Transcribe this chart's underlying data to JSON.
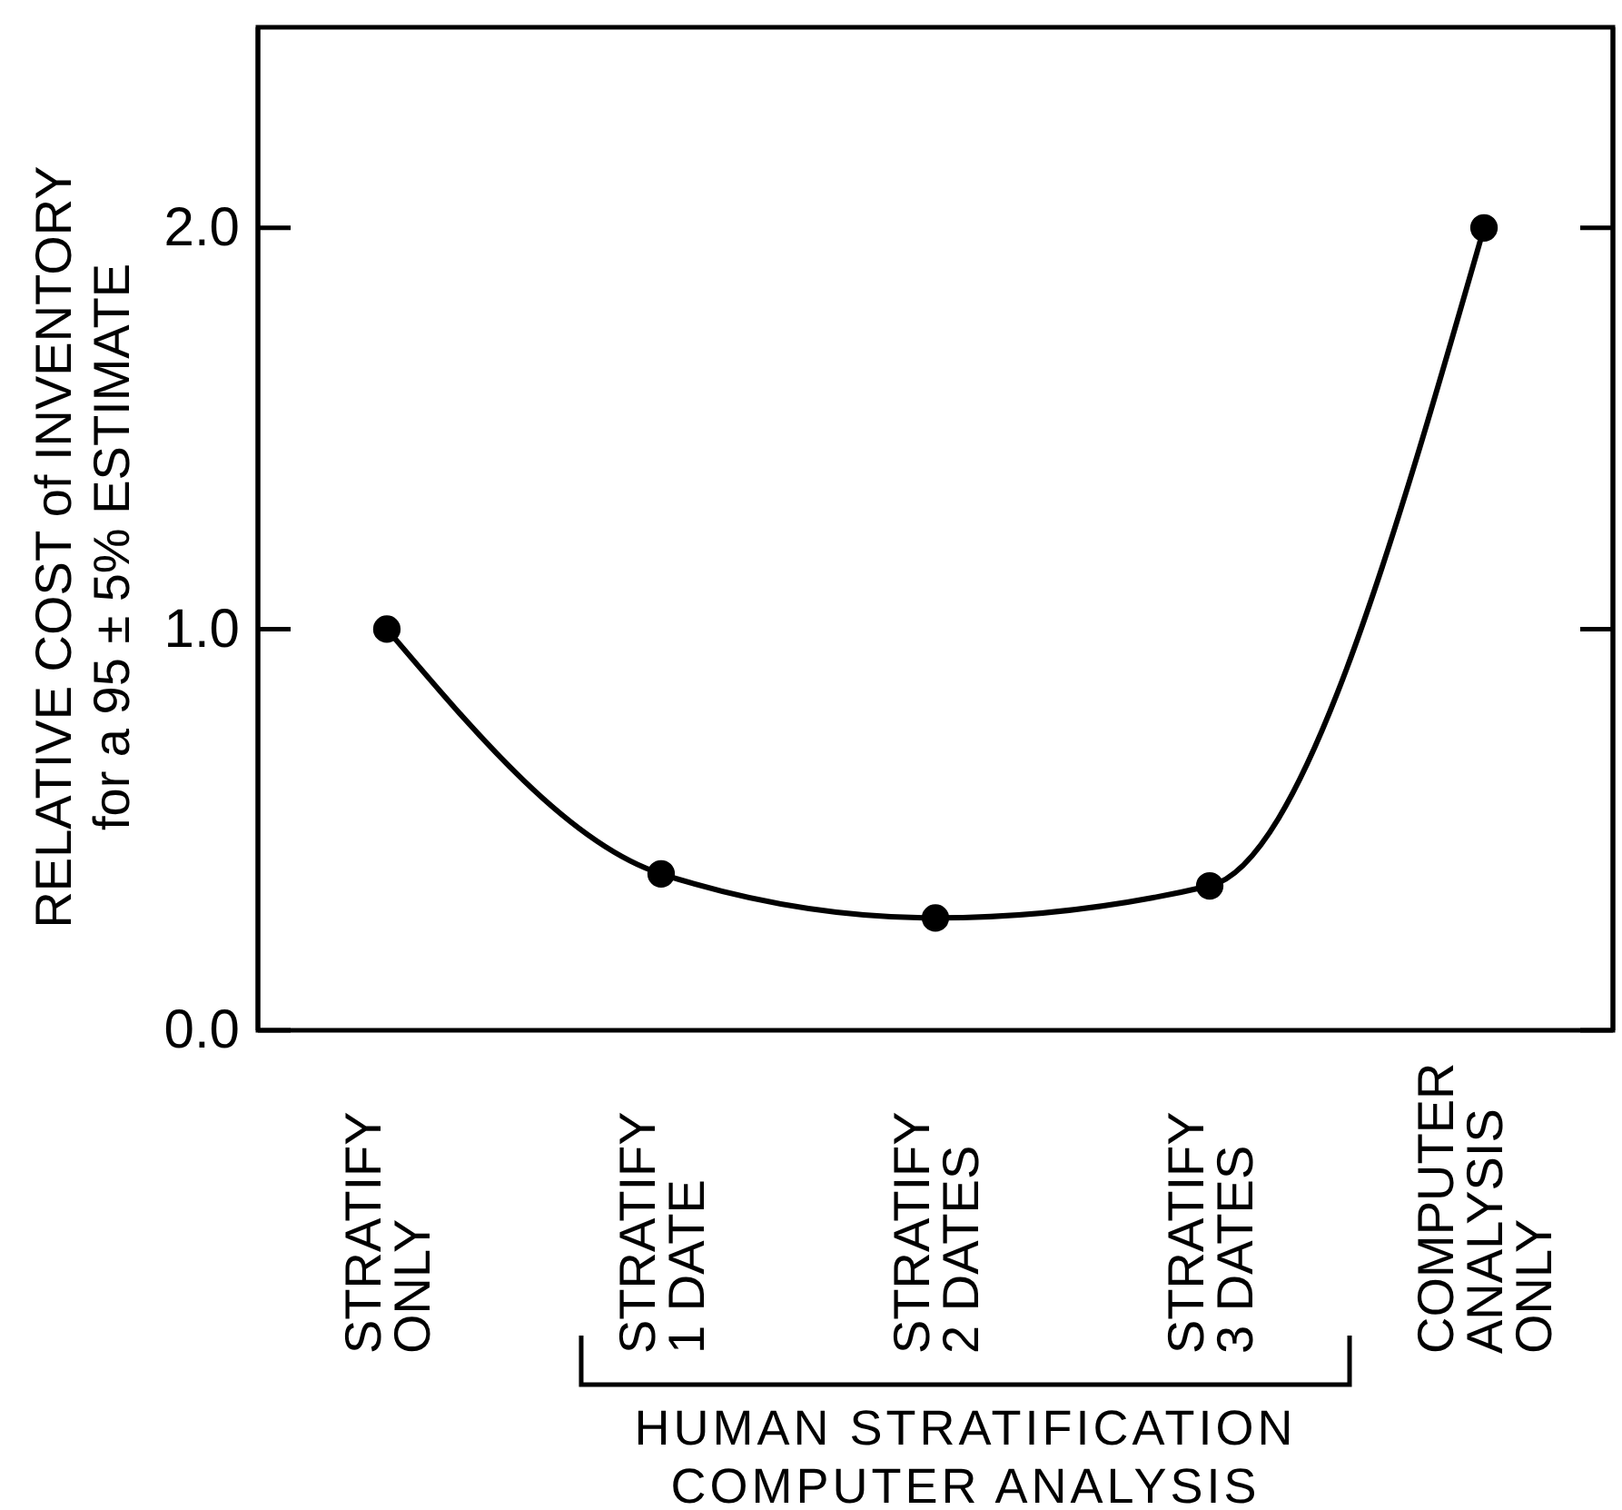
{
  "chart_data": {
    "type": "line",
    "categories": [
      "STRATIFY\nONLY",
      "STRATIFY\n1 DATE",
      "STRATIFY\n2 DATES",
      "STRATIFY\n3 DATES",
      "COMPUTER\nANALYSIS\nONLY"
    ],
    "values": [
      1.0,
      0.39,
      0.28,
      0.36,
      2.0
    ],
    "color": "#000000",
    "ylabel": "RELATIVE COST of INVENTORY\nfor a 95 ± 5% ESTIMATE",
    "ylim": [
      0,
      2.5
    ],
    "yticks": [
      {
        "value": 0,
        "label": "0.0"
      },
      {
        "value": 1,
        "label": "1.0"
      },
      {
        "value": 2,
        "label": "2.0"
      }
    ],
    "marker": "circle",
    "line_style": "solid",
    "grid": false,
    "annotations": [
      "HUMAN STRATIFICATION\nCOMPUTER ANALYSIS"
    ]
  }
}
